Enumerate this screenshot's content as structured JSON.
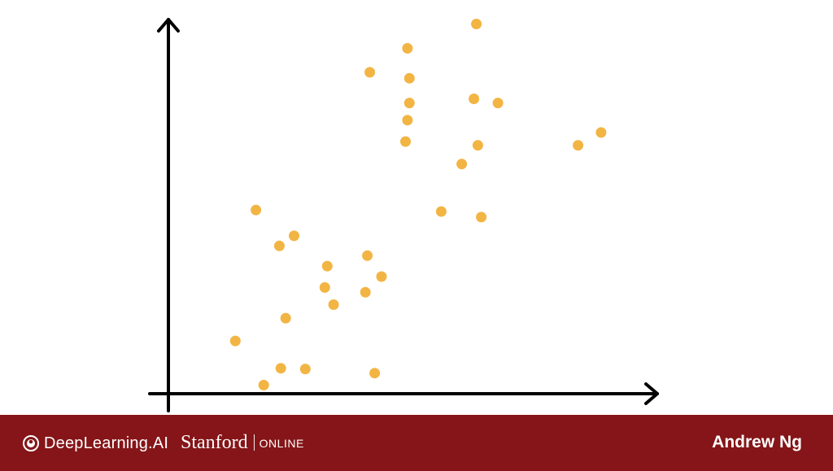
{
  "chart_data": {
    "type": "scatter",
    "title": "",
    "xlabel": "",
    "ylabel": "",
    "xlim": [
      0,
      10
    ],
    "ylim": [
      0,
      10
    ],
    "grid": false,
    "axes_arrows": true,
    "point_color": "#f2b544",
    "points": [
      {
        "x": 6.3,
        "y": 9.88
      },
      {
        "x": 4.89,
        "y": 9.23
      },
      {
        "x": 4.12,
        "y": 8.59
      },
      {
        "x": 4.93,
        "y": 8.43
      },
      {
        "x": 4.93,
        "y": 7.77
      },
      {
        "x": 6.25,
        "y": 7.88
      },
      {
        "x": 6.74,
        "y": 7.77
      },
      {
        "x": 4.89,
        "y": 7.31
      },
      {
        "x": 4.85,
        "y": 6.74
      },
      {
        "x": 6.33,
        "y": 6.64
      },
      {
        "x": 8.38,
        "y": 6.64
      },
      {
        "x": 8.85,
        "y": 6.98
      },
      {
        "x": 6.0,
        "y": 6.14
      },
      {
        "x": 5.58,
        "y": 4.87
      },
      {
        "x": 6.4,
        "y": 4.72
      },
      {
        "x": 1.79,
        "y": 4.91
      },
      {
        "x": 2.57,
        "y": 4.22
      },
      {
        "x": 2.27,
        "y": 3.95
      },
      {
        "x": 4.07,
        "y": 3.69
      },
      {
        "x": 3.25,
        "y": 3.41
      },
      {
        "x": 4.36,
        "y": 3.13
      },
      {
        "x": 3.2,
        "y": 2.84
      },
      {
        "x": 4.03,
        "y": 2.71
      },
      {
        "x": 3.38,
        "y": 2.38
      },
      {
        "x": 2.4,
        "y": 2.02
      },
      {
        "x": 1.37,
        "y": 1.41
      },
      {
        "x": 2.3,
        "y": 0.68
      },
      {
        "x": 2.8,
        "y": 0.66
      },
      {
        "x": 4.22,
        "y": 0.55
      },
      {
        "x": 1.95,
        "y": 0.23
      }
    ]
  },
  "footer": {
    "brand": "DeepLearning.AI",
    "brand_icon": "deeplearning-logo-icon",
    "partner_name": "Stanford",
    "partner_suffix": "ONLINE",
    "author": "Andrew Ng",
    "background_color": "#851518"
  }
}
